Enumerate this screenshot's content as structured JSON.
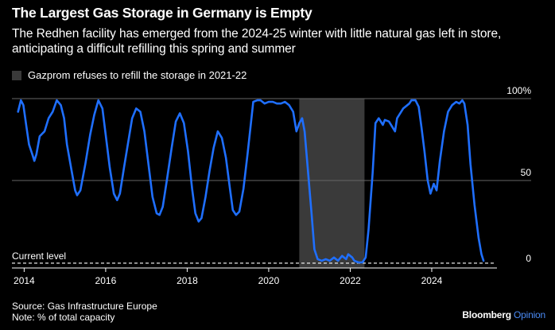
{
  "header": {
    "title": "The Largest Gas Storage in Germany is Empty",
    "subtitle": "The Redhen facility has emerged from the 2024-25 winter with little natural gas left in store, anticipating a difficult refilling this spring and summer"
  },
  "footer": {
    "source": "Source: Gas Infrastructure Europe",
    "note": "Note: % of total capacity",
    "brand_name": "Bloomberg",
    "brand_section": "Opinion"
  },
  "colors": {
    "background": "#000000",
    "line": "#1f6fff",
    "shade": "#3a3a3a",
    "grid": "#666666",
    "text": "#ffffff",
    "accent": "#4b8bf5"
  },
  "chart_data": {
    "type": "line",
    "title": "The Largest Gas Storage in Germany is Empty",
    "xlabel": "",
    "ylabel": "",
    "xlim": [
      2013.7,
      2025.6
    ],
    "ylim": [
      0,
      100
    ],
    "grid": true,
    "x_ticks": [
      2014,
      2016,
      2018,
      2020,
      2022,
      2024
    ],
    "y_ticks": [
      {
        "value": 100,
        "label": "100%"
      },
      {
        "value": 50,
        "label": "50"
      },
      {
        "value": 0,
        "label": "0"
      }
    ],
    "reference_line": {
      "label": "Current level",
      "value": 1,
      "style": "dashed"
    },
    "shaded_region": {
      "label": "Gazprom refuses to refill the storage in 2021-22",
      "x_start": 2020.75,
      "x_end": 2022.35
    },
    "series": [
      {
        "values": [
          [
            2013.85,
            92
          ],
          [
            2013.92,
            99
          ],
          [
            2013.98,
            96
          ],
          [
            2014.05,
            84
          ],
          [
            2014.12,
            72
          ],
          [
            2014.2,
            66
          ],
          [
            2014.25,
            62
          ],
          [
            2014.3,
            66
          ],
          [
            2014.38,
            77
          ],
          [
            2014.5,
            80
          ],
          [
            2014.6,
            88
          ],
          [
            2014.7,
            92
          ],
          [
            2014.8,
            99
          ],
          [
            2014.9,
            96
          ],
          [
            2014.98,
            88
          ],
          [
            2015.05,
            72
          ],
          [
            2015.15,
            58
          ],
          [
            2015.25,
            44
          ],
          [
            2015.3,
            41
          ],
          [
            2015.38,
            44
          ],
          [
            2015.5,
            60
          ],
          [
            2015.62,
            78
          ],
          [
            2015.72,
            90
          ],
          [
            2015.82,
            99
          ],
          [
            2015.92,
            94
          ],
          [
            2016.0,
            78
          ],
          [
            2016.1,
            58
          ],
          [
            2016.2,
            42
          ],
          [
            2016.28,
            38
          ],
          [
            2016.35,
            42
          ],
          [
            2016.45,
            58
          ],
          [
            2016.55,
            73
          ],
          [
            2016.65,
            88
          ],
          [
            2016.75,
            94
          ],
          [
            2016.85,
            92
          ],
          [
            2016.95,
            80
          ],
          [
            2017.05,
            60
          ],
          [
            2017.15,
            40
          ],
          [
            2017.25,
            30
          ],
          [
            2017.32,
            29
          ],
          [
            2017.4,
            34
          ],
          [
            2017.5,
            50
          ],
          [
            2017.62,
            70
          ],
          [
            2017.72,
            86
          ],
          [
            2017.82,
            91
          ],
          [
            2017.92,
            85
          ],
          [
            2018.02,
            68
          ],
          [
            2018.12,
            45
          ],
          [
            2018.2,
            30
          ],
          [
            2018.28,
            25
          ],
          [
            2018.35,
            27
          ],
          [
            2018.45,
            40
          ],
          [
            2018.55,
            56
          ],
          [
            2018.65,
            70
          ],
          [
            2018.75,
            80
          ],
          [
            2018.85,
            76
          ],
          [
            2018.95,
            64
          ],
          [
            2019.05,
            45
          ],
          [
            2019.12,
            32
          ],
          [
            2019.2,
            29
          ],
          [
            2019.28,
            31
          ],
          [
            2019.38,
            45
          ],
          [
            2019.48,
            66
          ],
          [
            2019.55,
            82
          ],
          [
            2019.62,
            98
          ],
          [
            2019.72,
            99
          ],
          [
            2019.8,
            99
          ],
          [
            2019.9,
            97
          ],
          [
            2020.0,
            98
          ],
          [
            2020.1,
            98
          ],
          [
            2020.2,
            97
          ],
          [
            2020.3,
            97
          ],
          [
            2020.4,
            98
          ],
          [
            2020.5,
            96
          ],
          [
            2020.6,
            92
          ],
          [
            2020.68,
            80
          ],
          [
            2020.75,
            85
          ],
          [
            2020.82,
            88
          ],
          [
            2020.88,
            80
          ],
          [
            2020.95,
            60
          ],
          [
            2021.05,
            30
          ],
          [
            2021.12,
            8
          ],
          [
            2021.2,
            2
          ],
          [
            2021.3,
            1
          ],
          [
            2021.4,
            2
          ],
          [
            2021.5,
            1
          ],
          [
            2021.6,
            3
          ],
          [
            2021.7,
            1
          ],
          [
            2021.8,
            4
          ],
          [
            2021.9,
            2
          ],
          [
            2021.95,
            5
          ],
          [
            2022.05,
            3
          ],
          [
            2022.1,
            1
          ],
          [
            2022.2,
            0
          ],
          [
            2022.3,
            0
          ],
          [
            2022.38,
            3
          ],
          [
            2022.45,
            20
          ],
          [
            2022.55,
            55
          ],
          [
            2022.62,
            85
          ],
          [
            2022.7,
            88
          ],
          [
            2022.8,
            84
          ],
          [
            2022.85,
            87
          ],
          [
            2022.95,
            86
          ],
          [
            2023.1,
            80
          ],
          [
            2023.15,
            88
          ],
          [
            2023.3,
            94
          ],
          [
            2023.45,
            97
          ],
          [
            2023.5,
            99
          ],
          [
            2023.6,
            99
          ],
          [
            2023.68,
            95
          ],
          [
            2023.75,
            82
          ],
          [
            2023.82,
            68
          ],
          [
            2023.9,
            50
          ],
          [
            2023.97,
            42
          ],
          [
            2024.05,
            48
          ],
          [
            2024.12,
            44
          ],
          [
            2024.2,
            62
          ],
          [
            2024.3,
            80
          ],
          [
            2024.4,
            92
          ],
          [
            2024.5,
            96
          ],
          [
            2024.6,
            98
          ],
          [
            2024.68,
            97
          ],
          [
            2024.75,
            99
          ],
          [
            2024.8,
            97
          ],
          [
            2024.88,
            84
          ],
          [
            2024.95,
            60
          ],
          [
            2025.05,
            35
          ],
          [
            2025.15,
            15
          ],
          [
            2025.22,
            5
          ],
          [
            2025.27,
            1
          ]
        ]
      }
    ]
  }
}
